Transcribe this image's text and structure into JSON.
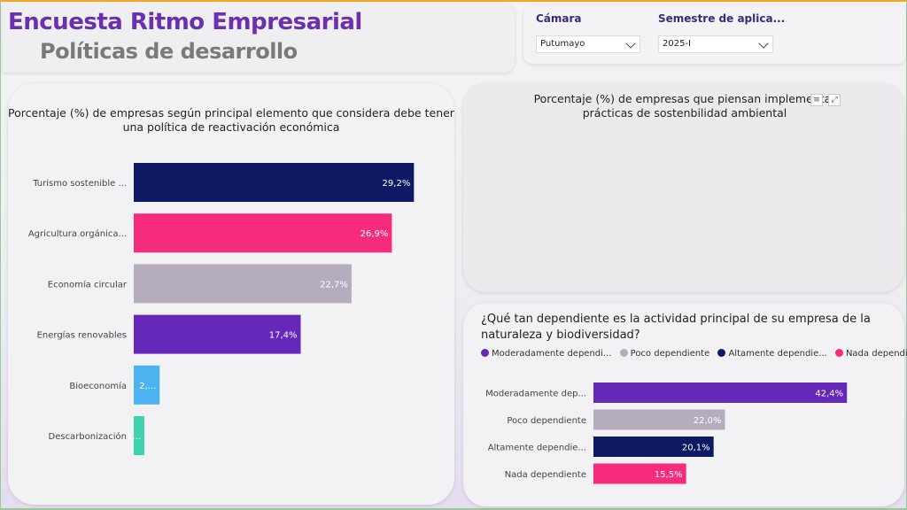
{
  "header": {
    "title": "Encuesta Ritmo Empresarial",
    "subtitle": "Políticas de desarrollo"
  },
  "filters": [
    {
      "label": "Cámara",
      "value": "Putumayo"
    },
    {
      "label": "Semestre de aplica...",
      "value": "2025-I"
    }
  ],
  "colors": {
    "navy": "#0d1a63",
    "pink": "#f72b7b",
    "gray": "#b5adbe",
    "purple": "#6628b8",
    "lightblue": "#4db2f0",
    "teal": "#3fd3ad"
  },
  "chart_data": [
    {
      "type": "bar",
      "orientation": "horizontal",
      "title": "Porcentaje (%) de empresas según principal elemento que considera debe tener una política de reactivación económica",
      "categories": [
        "Turismo sostenible ...",
        "Agricultura orgánica...",
        "Economía circular",
        "Energías renovables",
        "Bioeconomía",
        "Descarbonización"
      ],
      "values": [
        29.2,
        26.9,
        22.7,
        17.4,
        2.7,
        1.1
      ],
      "value_labels": [
        "29,2%",
        "26,9%",
        "22,7%",
        "17,4%",
        "2,...",
        "1..."
      ],
      "colors": [
        "#0d1a63",
        "#f72b7b",
        "#b5adbe",
        "#6628b8",
        "#4db2f0",
        "#3fd3ad"
      ],
      "xlim": [
        0,
        30
      ]
    },
    {
      "type": "bar",
      "title": "Porcentaje (%) de empresas que piensan implementar prácticas de sostenbilidad ambiental",
      "categories": [],
      "values": []
    },
    {
      "type": "bar",
      "orientation": "horizontal",
      "title": "¿Qué tan dependiente es la actividad principal de su empresa de la naturaleza y biodiversidad?",
      "legend": [
        "Moderadamente dependi...",
        "Poco dependiente",
        "Altamente dependie...",
        "Nada dependie..."
      ],
      "legend_placement": "top",
      "categories": [
        "Moderadamente dep...",
        "Poco dependiente",
        "Altamente dependie...",
        "Nada dependiente"
      ],
      "values": [
        42.4,
        22.0,
        20.1,
        15.5
      ],
      "value_labels": [
        "42,4%",
        "22,0%",
        "20,1%",
        "15,5%"
      ],
      "colors": [
        "#6628b8",
        "#b5adbe",
        "#0d1a63",
        "#f72b7b"
      ],
      "xlim": [
        0,
        44
      ]
    }
  ]
}
